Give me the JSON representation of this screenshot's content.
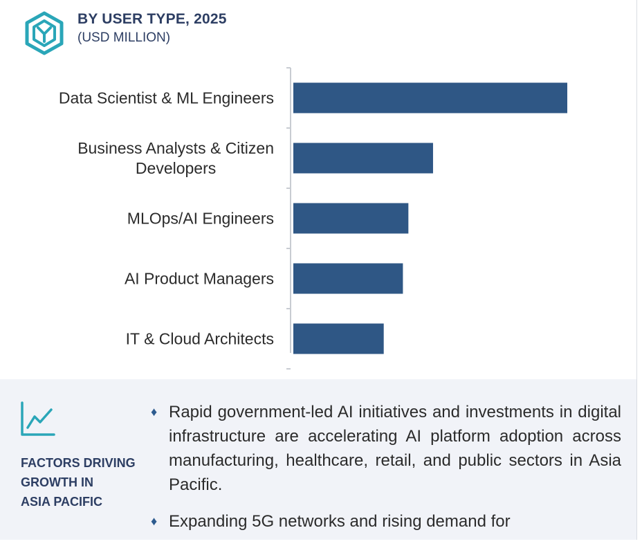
{
  "header": {
    "title": "BY USER TYPE, 2025",
    "subtitle": "(USD MILLION)",
    "logo_icon": "hexagon-y-logo-icon"
  },
  "chart_data": {
    "type": "bar",
    "orientation": "horizontal",
    "categories": [
      [
        "Data Scientist & ML Engineers"
      ],
      [
        "Business Analysts & Citizen",
        "Developers"
      ],
      [
        "MLOps/AI Engineers"
      ],
      [
        "AI Product Managers"
      ],
      [
        "IT & Cloud Architects"
      ]
    ],
    "values": [
      100,
      51,
      42,
      40,
      33
    ],
    "bar_color": "#2f5785",
    "title": "BY USER TYPE, 2025",
    "xlabel": "",
    "ylabel": "",
    "xlim": [
      0,
      100
    ],
    "grid": false,
    "axis_color": "#c8ccd2"
  },
  "factors": {
    "icon": "trend-line-chart-icon",
    "title": "FACTORS DRIVING GROWTH IN ASIA PACIFIC",
    "title_lines": [
      "FACTORS DRIVING",
      "GROWTH IN",
      "ASIA PACIFIC"
    ],
    "bullet_symbol": "♦",
    "bullets": [
      "Rapid government-led AI initiatives and investments in digital infrastructure are accelerating AI platform adoption across manufacturing, healthcare, retail, and public sectors in Asia Pacific.",
      "Expanding 5G networks and rising demand for"
    ],
    "accent_color": "#2aa6b8",
    "heading_color": "#2d3e63"
  }
}
